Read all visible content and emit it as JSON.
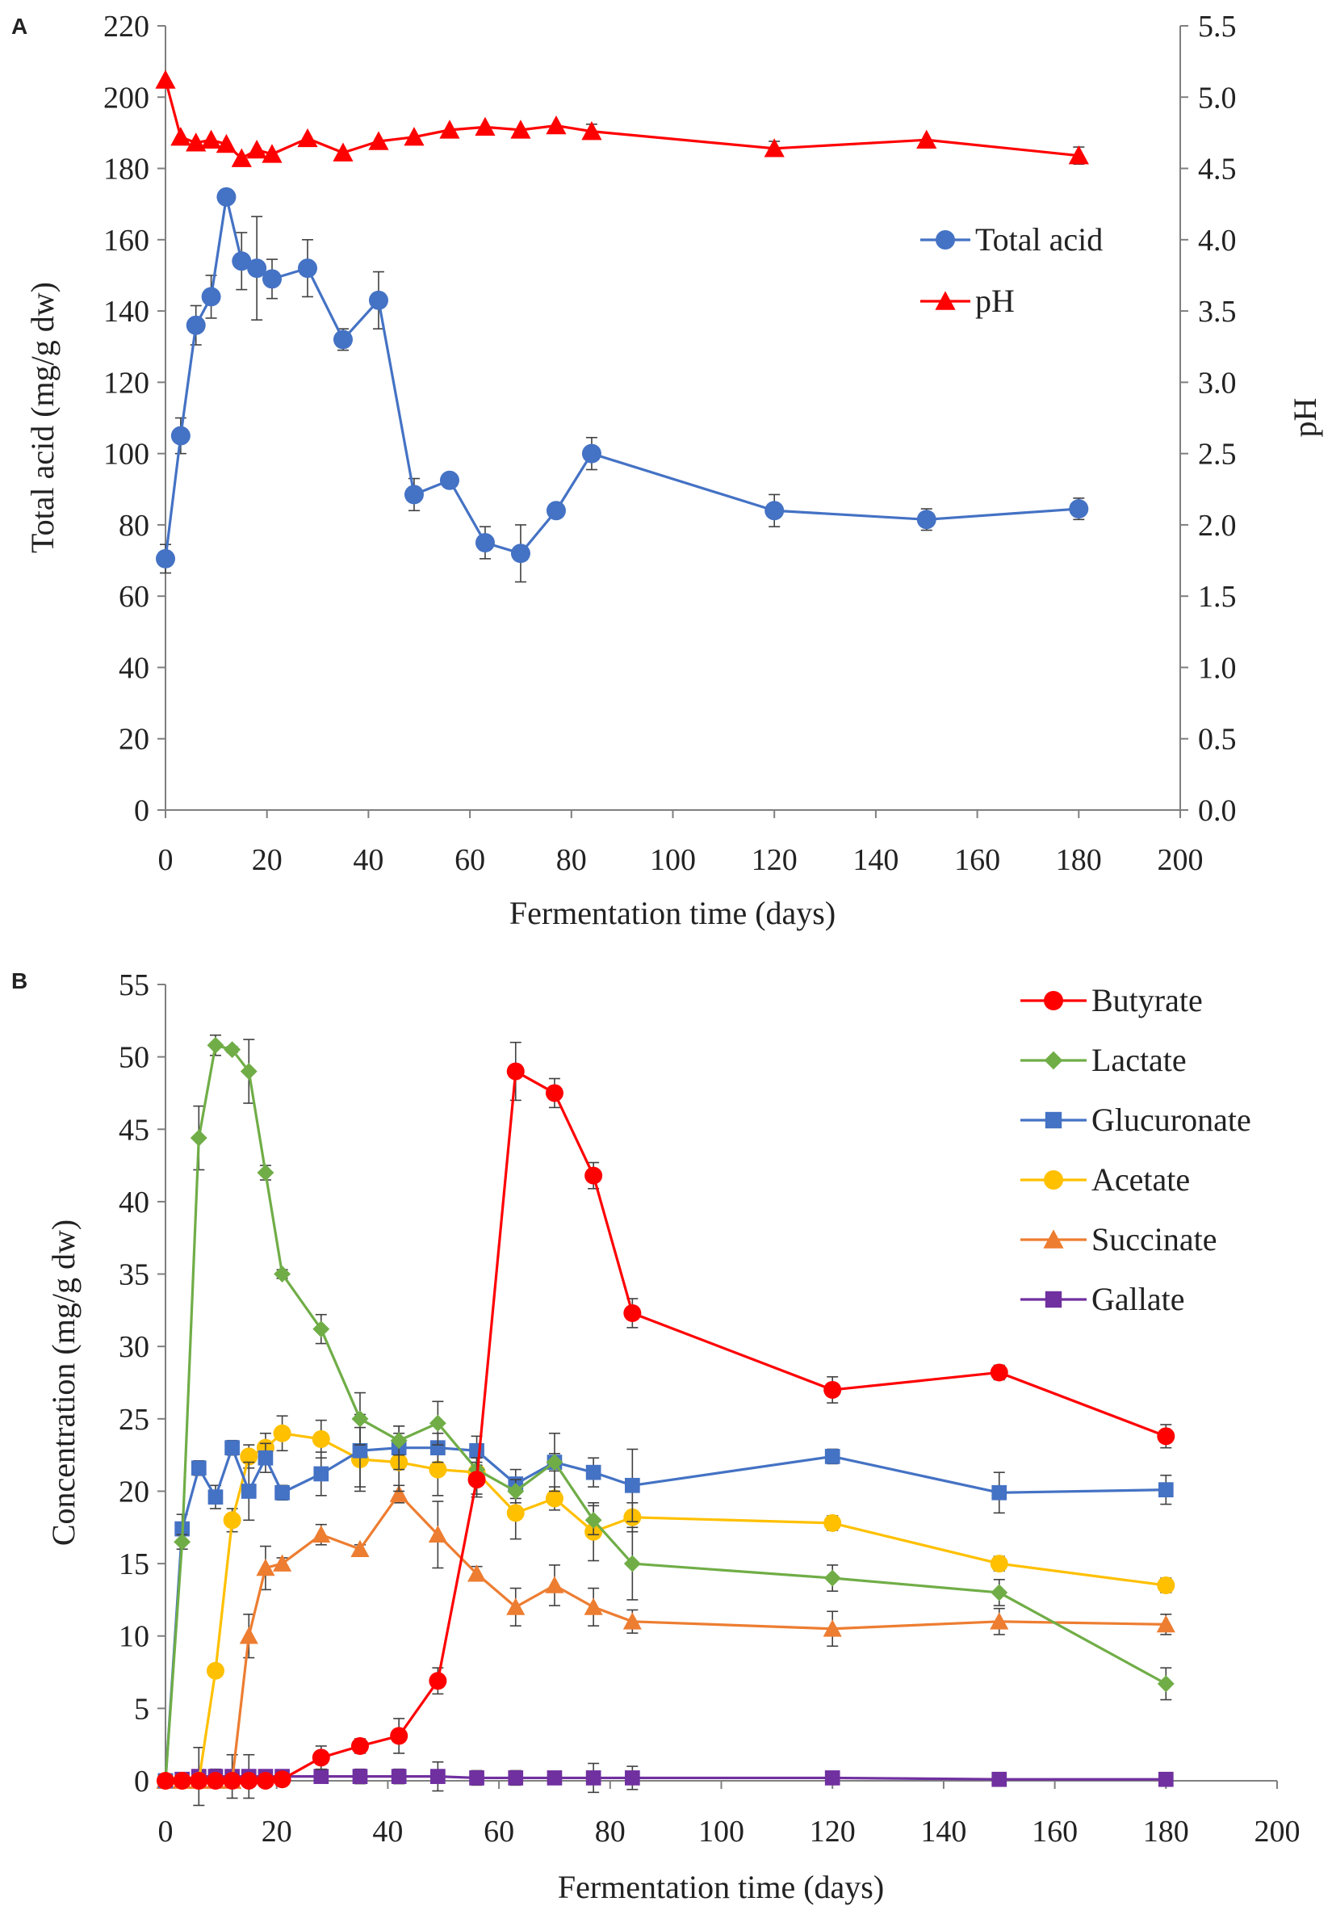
{
  "chart_data": [
    {
      "panel": "A",
      "type": "line",
      "title": "",
      "xlabel": "Fermentation time (days)",
      "ylabel": "Total acid (mg/g dw)",
      "y2label": "pH",
      "xlim": [
        0,
        200
      ],
      "ylim": [
        0,
        220
      ],
      "y2lim": [
        0.0,
        5.5
      ],
      "x_ticks": [
        "0",
        "20",
        "40",
        "60",
        "80",
        "100",
        "120",
        "140",
        "160",
        "180",
        "200"
      ],
      "y_ticks": [
        "0",
        "20",
        "40",
        "60",
        "80",
        "100",
        "120",
        "140",
        "160",
        "180",
        "200",
        "220"
      ],
      "y2_ticks": [
        "0.0",
        "0.5",
        "1.0",
        "1.5",
        "2.0",
        "2.5",
        "3.0",
        "3.5",
        "4.0",
        "4.5",
        "5.0",
        "5.5"
      ],
      "legend_position": "right",
      "grid": false,
      "series": [
        {
          "name": "Total acid",
          "axis": "left",
          "marker": "circle",
          "color": "#4472C4",
          "x": [
            0,
            3,
            6,
            9,
            12,
            15,
            18,
            21,
            28,
            35,
            42,
            49,
            56,
            63,
            70,
            77,
            84,
            120,
            150,
            180
          ],
          "values": [
            70.5,
            105,
            136,
            144,
            172,
            154,
            152,
            149,
            152,
            132,
            143,
            88.5,
            92.5,
            75,
            72,
            84,
            100,
            84,
            81.5,
            84.5
          ],
          "errors": [
            4,
            5,
            5.5,
            6,
            0,
            8,
            14.5,
            5.5,
            8,
            3,
            8,
            4.5,
            0,
            4.5,
            8,
            0,
            4.5,
            4.5,
            3,
            3
          ]
        },
        {
          "name": "pH",
          "axis": "right",
          "marker": "triangle",
          "color": "#FF0000",
          "x": [
            0,
            3,
            6,
            9,
            12,
            15,
            18,
            21,
            28,
            35,
            42,
            49,
            56,
            63,
            70,
            77,
            84,
            120,
            150,
            180
          ],
          "values": [
            5.12,
            4.72,
            4.68,
            4.7,
            4.67,
            4.57,
            4.63,
            4.6,
            4.71,
            4.61,
            4.69,
            4.72,
            4.77,
            4.79,
            4.77,
            4.8,
            4.76,
            4.64,
            4.7,
            4.59
          ],
          "errors": [
            0,
            0,
            0,
            0,
            0,
            0,
            0,
            0,
            0,
            0,
            0,
            0,
            0,
            0,
            0,
            0,
            0.05,
            0.05,
            0,
            0.06
          ]
        }
      ]
    },
    {
      "panel": "B",
      "type": "line",
      "title": "",
      "xlabel": "Fermentation time (days)",
      "ylabel": "Concentration (mg/g dw)",
      "xlim": [
        0,
        200
      ],
      "ylim": [
        0,
        55
      ],
      "x_ticks": [
        "0",
        "20",
        "40",
        "60",
        "80",
        "100",
        "120",
        "140",
        "160",
        "180",
        "200"
      ],
      "y_ticks": [
        "0",
        "5",
        "10",
        "15",
        "20",
        "25",
        "30",
        "35",
        "40",
        "45",
        "50",
        "55"
      ],
      "legend_position": "top-right",
      "grid": false,
      "series": [
        {
          "name": "Butyrate",
          "marker": "circle",
          "color": "#FF0000",
          "x": [
            0,
            3,
            6,
            9,
            12,
            15,
            18,
            21,
            28,
            35,
            42,
            49,
            56,
            63,
            70,
            77,
            84,
            120,
            150,
            180
          ],
          "values": [
            0,
            0,
            0,
            0,
            0,
            0,
            0,
            0.1,
            1.6,
            2.4,
            3.1,
            6.9,
            20.8,
            49,
            47.5,
            41.8,
            32.3,
            27,
            28.2,
            23.8
          ],
          "errors": [
            0,
            0,
            0,
            0,
            0,
            0,
            0,
            0,
            0.8,
            0.5,
            1.2,
            0.9,
            1.2,
            2,
            1,
            0.9,
            1,
            0.9,
            0.5,
            0.8
          ]
        },
        {
          "name": "Lactate",
          "marker": "diamond",
          "color": "#70AD47",
          "x": [
            0,
            3,
            6,
            9,
            12,
            15,
            18,
            21,
            28,
            35,
            42,
            49,
            56,
            63,
            70,
            77,
            84,
            120,
            150,
            180
          ],
          "values": [
            0,
            16.5,
            44.4,
            50.8,
            50.5,
            49,
            42,
            35,
            31.2,
            25,
            23.5,
            24.7,
            21.5,
            20,
            22,
            18,
            15,
            14,
            13,
            6.7
          ],
          "errors": [
            0,
            0.5,
            2.2,
            0.7,
            0.2,
            2.2,
            0.5,
            0.3,
            1,
            1.8,
            1,
            1.5,
            0.8,
            0.8,
            0.6,
            1,
            2.5,
            0.9,
            0.9,
            1.1
          ]
        },
        {
          "name": "Glucuronate",
          "marker": "square",
          "color": "#4472C4",
          "x": [
            0,
            3,
            6,
            9,
            12,
            15,
            18,
            21,
            28,
            35,
            42,
            49,
            56,
            63,
            70,
            77,
            84,
            120,
            150,
            180
          ],
          "values": [
            0,
            17.4,
            21.6,
            19.6,
            23,
            20,
            22.3,
            19.9,
            21.2,
            22.8,
            23,
            23,
            22.8,
            20.5,
            22,
            21.3,
            20.4,
            22.4,
            19.9,
            20.1
          ],
          "errors": [
            0,
            1,
            0.5,
            0.8,
            0.5,
            2,
            1,
            0.5,
            1.5,
            2.5,
            1.5,
            1,
            1,
            1,
            2,
            1,
            2.5,
            0.5,
            1.4,
            1
          ]
        },
        {
          "name": "Acetate",
          "marker": "circle",
          "color": "#FFC000",
          "x": [
            0,
            3,
            6,
            9,
            12,
            15,
            18,
            21,
            28,
            35,
            42,
            49,
            56,
            63,
            70,
            77,
            84,
            120,
            150,
            180
          ],
          "values": [
            0,
            0,
            0,
            7.6,
            18,
            22.4,
            23,
            24,
            23.6,
            22.2,
            22,
            21.5,
            21.3,
            18.5,
            19.5,
            17.2,
            18.2,
            17.8,
            15,
            13.5
          ],
          "errors": [
            0,
            0,
            0,
            0,
            0.8,
            0.8,
            1,
            1.2,
            1.3,
            2.2,
            2,
            1.8,
            1.5,
            1.8,
            0.8,
            2,
            1,
            0.5,
            0.5,
            0.5
          ]
        },
        {
          "name": "Succinate",
          "marker": "triangle",
          "color": "#ED7D31",
          "x": [
            0,
            3,
            6,
            9,
            12,
            15,
            18,
            21,
            28,
            35,
            42,
            49,
            56,
            63,
            70,
            77,
            84,
            120,
            150,
            180
          ],
          "values": [
            0,
            0,
            0,
            0,
            0,
            10,
            14.7,
            15,
            17,
            16,
            19.8,
            17,
            14.3,
            12,
            13.5,
            12,
            11,
            10.5,
            11,
            10.8
          ],
          "errors": [
            0,
            0,
            0,
            0,
            0,
            1.5,
            1.5,
            0.4,
            0.7,
            0.3,
            0.6,
            2.3,
            0.5,
            1.3,
            1.4,
            1.3,
            0.8,
            1.2,
            0.9,
            0.7
          ]
        },
        {
          "name": "Gallate",
          "marker": "square",
          "color": "#7030A0",
          "x": [
            0,
            3,
            6,
            9,
            12,
            15,
            18,
            21,
            28,
            35,
            42,
            49,
            56,
            63,
            70,
            77,
            84,
            120,
            150,
            180
          ],
          "values": [
            0,
            0.1,
            0.3,
            0.3,
            0.3,
            0.3,
            0.3,
            0.3,
            0.3,
            0.3,
            0.3,
            0.3,
            0.2,
            0.2,
            0.2,
            0.2,
            0.2,
            0.2,
            0.1,
            0.1
          ],
          "errors": [
            0,
            0,
            2,
            0.5,
            1.5,
            1.5,
            0.3,
            0,
            0,
            0.5,
            0.5,
            1,
            0.5,
            0.5,
            0,
            1,
            0.8,
            0,
            0,
            0
          ]
        }
      ]
    }
  ]
}
